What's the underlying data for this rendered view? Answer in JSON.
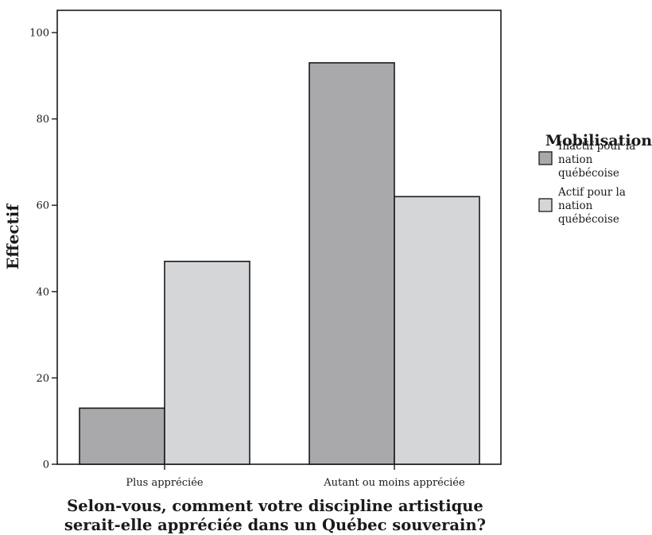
{
  "chart_data": {
    "type": "bar",
    "categories": [
      "Plus appréciée",
      "Autant ou moins appréciée"
    ],
    "series": [
      {
        "name": "Inactif pour la nation québécoise",
        "values": [
          13,
          93
        ],
        "color": "#a9a9ab"
      },
      {
        "name": "Actif pour la nation québécoise",
        "values": [
          47,
          62
        ],
        "color": "#d5d6d8"
      }
    ],
    "xlabel": "Selon-vous, comment votre discipline artistique serait-elle appréciée dans un Québec souverain?",
    "xlabel_lines": [
      "Selon-vous, comment votre discipline artistique",
      "serait-elle appréciée dans un Québec souverain?"
    ],
    "ylabel": "Effectif",
    "ylim": [
      0,
      100
    ],
    "yticks": [
      0,
      20,
      40,
      60,
      80,
      100
    ],
    "legend": {
      "title": "Mobilisation",
      "placement": "right",
      "entries": [
        {
          "lines": [
            "Inactif pour la",
            "nation",
            "québécoise"
          ],
          "color": "#a9a9ab"
        },
        {
          "lines": [
            "Actif pour la",
            "nation",
            "québécoise"
          ],
          "color": "#d5d6d8"
        }
      ]
    },
    "grid": false
  }
}
